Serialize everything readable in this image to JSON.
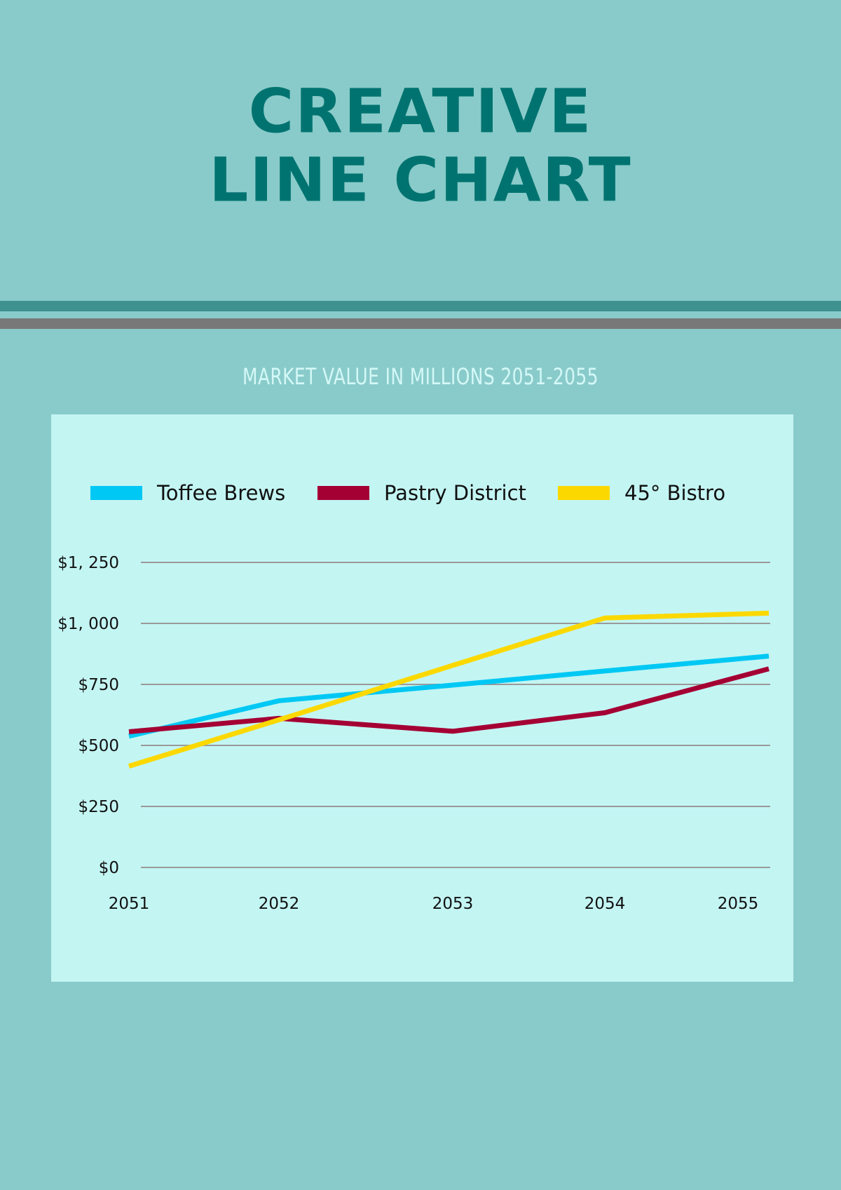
{
  "header": {
    "title_line1": "CREATIVE",
    "title_line2": "LINE CHART"
  },
  "chart_data": {
    "type": "line",
    "title": "",
    "subtitle": "MARKET VALUE IN MILLIONS 2051-2055",
    "x": [
      "2051",
      "2052",
      "2053",
      "2054",
      "2055"
    ],
    "y_ticks": [
      {
        "value": 0,
        "label": "$0"
      },
      {
        "value": 250,
        "label": "$250"
      },
      {
        "value": 500,
        "label": "$500"
      },
      {
        "value": 750,
        "label": "$750"
      },
      {
        "value": 1000,
        "label": "$1, 000"
      },
      {
        "value": 1250,
        "label": "$1, 250"
      }
    ],
    "ylim": [
      0,
      1250
    ],
    "grid": true,
    "legend_position": "top",
    "series": [
      {
        "name": "Toffee Brews",
        "color": "#00c8f4",
        "values": [
          538,
          683,
          747,
          805,
          866
        ]
      },
      {
        "name": "Pastry District",
        "color": "#a50034",
        "values": [
          556,
          611,
          558,
          634,
          814
        ]
      },
      {
        "name": "45° Bistro",
        "color": "#fbd900",
        "values": [
          415,
          605,
          828,
          1022,
          1042
        ]
      }
    ]
  }
}
